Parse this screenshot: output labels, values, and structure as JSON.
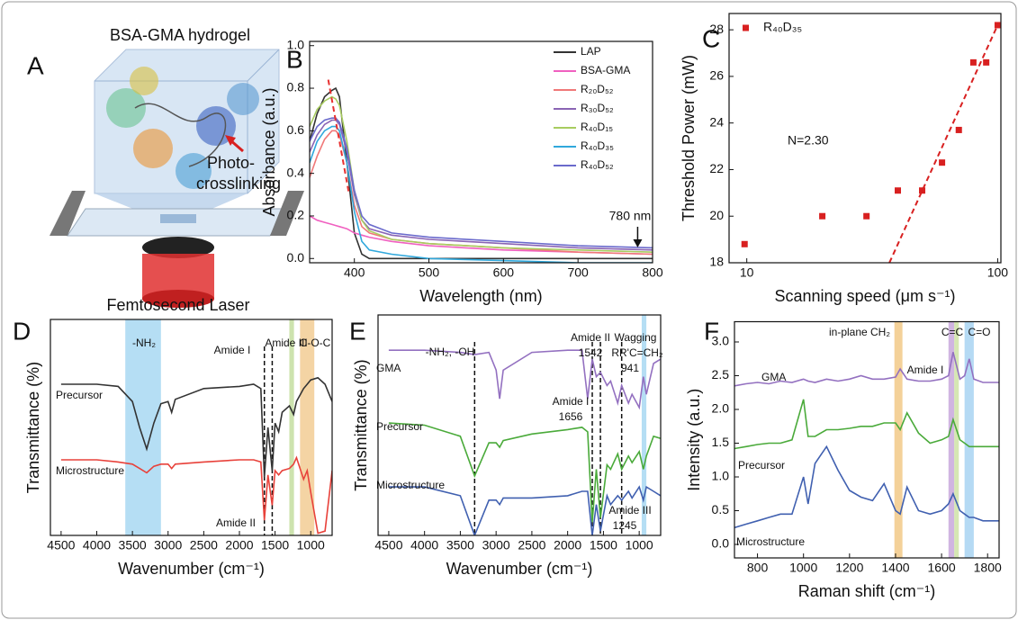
{
  "illustration": {
    "label": "A",
    "title": "BSA-GMA hydrogel",
    "arrow_label": [
      "Photo-",
      "crosslinking"
    ],
    "laser_label": "Femtosecond Laser"
  },
  "chart_data": [
    {
      "type": "line",
      "label": "B",
      "xlabel": "Wavelength (nm)",
      "ylabel": "Absorbance (a.u.)",
      "xlim": [
        340,
        800
      ],
      "ylim": [
        -0.02,
        1.02
      ],
      "xticks": [
        400,
        500,
        600,
        700,
        800
      ],
      "yticks": [
        {
          "value": 0,
          "label": "0.0"
        },
        0.2,
        0.4,
        0.6,
        0.8,
        {
          "value": 1,
          "label": "1.0"
        }
      ],
      "legend": "upper right",
      "x": [
        340,
        350,
        360,
        370,
        375,
        380,
        390,
        400,
        410,
        420,
        450,
        500,
        600,
        700,
        800
      ],
      "series": [
        {
          "name": "LAP",
          "color": "#333333",
          "values": [
            0.55,
            0.68,
            0.76,
            0.79,
            0.8,
            0.76,
            0.45,
            0.12,
            0.02,
            0,
            0,
            0,
            0,
            0,
            0
          ]
        },
        {
          "name": "BSA-GMA",
          "color": "#f060c0",
          "values": [
            0.2,
            0.18,
            0.17,
            0.16,
            0.155,
            0.15,
            0.14,
            0.12,
            0.11,
            0.1,
            0.08,
            0.06,
            0.04,
            0.03,
            0.02
          ]
        },
        {
          "name": "R₂₀D₅₂",
          "color": "#f07878",
          "values": [
            0.38,
            0.48,
            0.56,
            0.6,
            0.6,
            0.58,
            0.45,
            0.25,
            0.15,
            0.12,
            0.09,
            0.07,
            0.05,
            0.03,
            0.02
          ]
        },
        {
          "name": "R₃₀D₅₂",
          "color": "#8a64b4",
          "values": [
            0.5,
            0.58,
            0.63,
            0.65,
            0.65,
            0.63,
            0.5,
            0.3,
            0.18,
            0.14,
            0.11,
            0.09,
            0.07,
            0.05,
            0.04
          ]
        },
        {
          "name": "R₄₀D₁₅",
          "color": "#a8cc60",
          "values": [
            0.62,
            0.7,
            0.74,
            0.76,
            0.75,
            0.72,
            0.55,
            0.32,
            0.18,
            0.13,
            0.09,
            0.07,
            0.05,
            0.04,
            0.03
          ]
        },
        {
          "name": "R₄₀D₃₅",
          "color": "#30a8dc",
          "values": [
            0.45,
            0.55,
            0.6,
            0.62,
            0.62,
            0.6,
            0.45,
            0.22,
            0.08,
            0.04,
            0.02,
            0,
            -0.01,
            -0.02,
            -0.02
          ]
        },
        {
          "name": "R₄₀D₅₂",
          "color": "#6a6acc",
          "values": [
            0.55,
            0.62,
            0.65,
            0.66,
            0.66,
            0.64,
            0.52,
            0.32,
            0.2,
            0.16,
            0.12,
            0.1,
            0.08,
            0.06,
            0.05
          ]
        }
      ],
      "guide": {
        "color": "#e83030",
        "x": [
          365,
          393
        ],
        "values": [
          0.84,
          0.3
        ]
      },
      "annotations": [
        "780 nm"
      ],
      "arrow_x": 780
    },
    {
      "type": "scatter",
      "label": "C",
      "xlabel": "Scanning speed (μm s⁻¹)",
      "ylabel": "Threshold Power (mW)",
      "xscale": "log",
      "xlim": [
        8.5,
        103
      ],
      "ylim": [
        18,
        28.7
      ],
      "xticks": [
        10,
        100
      ],
      "yticks": [
        18,
        20,
        22,
        24,
        26,
        28
      ],
      "legend": "upper left",
      "x": [
        9.8,
        20,
        30,
        40,
        50,
        60,
        70,
        80,
        90,
        100
      ],
      "series": [
        {
          "name": "R₄₀D₃₅",
          "color": "#d82020",
          "values": [
            18.8,
            20,
            20,
            21.1,
            21.1,
            22.3,
            23.7,
            26.6,
            26.6,
            28.2
          ]
        }
      ],
      "fit": {
        "color": "#d82020",
        "x": [
          37,
          100
        ],
        "values": [
          18,
          28.2
        ]
      },
      "annotations": [
        "N=2.30"
      ]
    },
    {
      "type": "line",
      "label": "D",
      "xlabel": "Wavenumber (cm⁻¹)",
      "ylabel": "Transmittance (%)",
      "xlim": [
        4650,
        700
      ],
      "ylim": [
        0,
        100
      ],
      "xticks": [
        4500,
        4000,
        3500,
        3000,
        2500,
        2000,
        1500,
        1000
      ],
      "x": [
        4500,
        4000,
        3700,
        3500,
        3400,
        3300,
        3200,
        3100,
        3000,
        2950,
        2900,
        2500,
        2000,
        1800,
        1700,
        1650,
        1600,
        1540,
        1500,
        1450,
        1400,
        1300,
        1240,
        1200,
        1100,
        1050,
        1000,
        900,
        800,
        700
      ],
      "series": [
        {
          "name": "Precursor",
          "color": "#333333",
          "values": [
            70,
            70,
            69,
            62,
            50,
            40,
            52,
            61,
            62,
            57,
            63,
            68,
            69,
            70,
            68,
            27,
            50,
            30,
            52,
            48,
            57,
            60,
            56,
            62,
            68,
            70,
            72,
            73,
            70,
            62
          ]
        },
        {
          "name": "Microstructure",
          "color": "#e8413a",
          "values": [
            35,
            35,
            34,
            33,
            31,
            29,
            32,
            33,
            33,
            31,
            33,
            34,
            35,
            35,
            34,
            7,
            28,
            14,
            30,
            28,
            30,
            31,
            33,
            36,
            26,
            30,
            20,
            1,
            2,
            30
          ]
        }
      ],
      "bands": [
        {
          "range": [
            3600,
            3100
          ],
          "color": "#a8d8f2"
        },
        {
          "range": [
            1300,
            1235
          ],
          "color": "#c4dea0"
        },
        {
          "range": [
            1150,
            950
          ],
          "color": "#f2cc94"
        }
      ],
      "markers": [
        1650,
        1540
      ],
      "annotations": [
        "-NH₂",
        "Amide I",
        "Amide III",
        "C-O-C",
        "Amide II"
      ]
    },
    {
      "type": "line",
      "label": "E",
      "xlabel": "Wavenumber (cm⁻¹)",
      "ylabel": "Transmittance (%)",
      "xlim": [
        4650,
        700
      ],
      "ylim": [
        0,
        100
      ],
      "xticks": [
        4500,
        4000,
        3500,
        3000,
        2500,
        2000,
        1500,
        1000
      ],
      "x": [
        4500,
        4000,
        3500,
        3300,
        3100,
        3000,
        2950,
        2900,
        2500,
        2000,
        1800,
        1720,
        1656,
        1600,
        1542,
        1450,
        1400,
        1300,
        1245,
        1150,
        1100,
        1000,
        941,
        900,
        800,
        700
      ],
      "series": [
        {
          "name": "GMA",
          "color": "#9370c0",
          "values": [
            84,
            84,
            83,
            82,
            83,
            75,
            62,
            75,
            83,
            84,
            84,
            62,
            80,
            72,
            74,
            68,
            70,
            60,
            68,
            60,
            64,
            58,
            72,
            64,
            78,
            80
          ]
        },
        {
          "name": "Precursor",
          "color": "#4aaa3a",
          "values": [
            51,
            50,
            45,
            27,
            42,
            42,
            40,
            43,
            46,
            48,
            49,
            47,
            6,
            30,
            8,
            32,
            30,
            37,
            30,
            36,
            33,
            38,
            30,
            36,
            45,
            44
          ]
        },
        {
          "name": "Microstructure",
          "color": "#4060b0",
          "values": [
            22,
            22,
            18,
            0,
            16,
            16,
            14,
            17,
            17,
            18,
            20,
            20,
            0,
            14,
            2,
            18,
            14,
            18,
            16,
            20,
            17,
            22,
            16,
            22,
            20,
            18
          ]
        }
      ],
      "bands": [
        {
          "range": [
            965,
            900
          ],
          "color": "#a8d8f2"
        }
      ],
      "markers": [
        3300,
        1656,
        1542,
        1245
      ],
      "annotations": [
        "-NH₂,  -OH",
        "Amide II",
        "1542",
        "Wagging",
        "RR'C=CH₂",
        "941",
        "Amide I",
        "1656",
        "Amide III",
        "1245"
      ]
    },
    {
      "type": "line",
      "label": "F",
      "xlabel": "Raman shift (cm⁻¹)",
      "ylabel": "Intensity (a.u.)",
      "xlim": [
        700,
        1850
      ],
      "ylim": [
        -0.2,
        3.3
      ],
      "xticks": [
        800,
        1000,
        1200,
        1400,
        1600,
        1800
      ],
      "yticks": [
        {
          "value": 0,
          "label": "0.0"
        },
        0.5,
        {
          "value": 1,
          "label": "1.0"
        },
        1.5,
        {
          "value": 2,
          "label": "2.0"
        },
        2.5,
        {
          "value": 3,
          "label": "3.0"
        }
      ],
      "x": [
        700,
        750,
        800,
        850,
        900,
        950,
        1000,
        1020,
        1050,
        1100,
        1150,
        1200,
        1250,
        1300,
        1350,
        1400,
        1420,
        1450,
        1500,
        1550,
        1600,
        1630,
        1650,
        1680,
        1700,
        1720,
        1740,
        1780,
        1850
      ],
      "series": [
        {
          "name": "GMA",
          "color": "#9370c0",
          "values": [
            2.35,
            2.38,
            2.4,
            2.38,
            2.42,
            2.4,
            2.45,
            2.42,
            2.4,
            2.45,
            2.42,
            2.45,
            2.5,
            2.45,
            2.45,
            2.48,
            2.6,
            2.45,
            2.42,
            2.42,
            2.45,
            2.5,
            2.85,
            2.45,
            2.5,
            2.75,
            2.45,
            2.4,
            2.4
          ]
        },
        {
          "name": "Precursor",
          "color": "#4aaa3a",
          "values": [
            1.42,
            1.45,
            1.48,
            1.5,
            1.5,
            1.55,
            2.15,
            1.6,
            1.6,
            1.7,
            1.7,
            1.72,
            1.75,
            1.75,
            1.8,
            1.8,
            1.7,
            1.95,
            1.65,
            1.5,
            1.55,
            1.6,
            1.85,
            1.55,
            1.5,
            1.45,
            1.45,
            1.45,
            1.45
          ]
        },
        {
          "name": "Microstructure",
          "color": "#4060b0",
          "values": [
            0.25,
            0.3,
            0.35,
            0.4,
            0.45,
            0.45,
            1.0,
            0.6,
            1.2,
            1.45,
            1.1,
            0.8,
            0.7,
            0.65,
            0.9,
            0.5,
            0.45,
            0.85,
            0.5,
            0.45,
            0.5,
            0.6,
            0.75,
            0.5,
            0.45,
            0.4,
            0.4,
            0.35,
            0.35
          ]
        }
      ],
      "bands": [
        {
          "range": [
            1395,
            1430
          ],
          "color": "#f2c987"
        },
        {
          "range": [
            1630,
            1655
          ],
          "color": "#c8a8dc"
        },
        {
          "range": [
            1655,
            1675
          ],
          "color": "#cfe3a6"
        },
        {
          "range": [
            1700,
            1740
          ],
          "color": "#a8d4f2"
        }
      ],
      "annotations": [
        "in-plane CH₂",
        "C=C",
        "C=O",
        "Amide I"
      ]
    }
  ]
}
